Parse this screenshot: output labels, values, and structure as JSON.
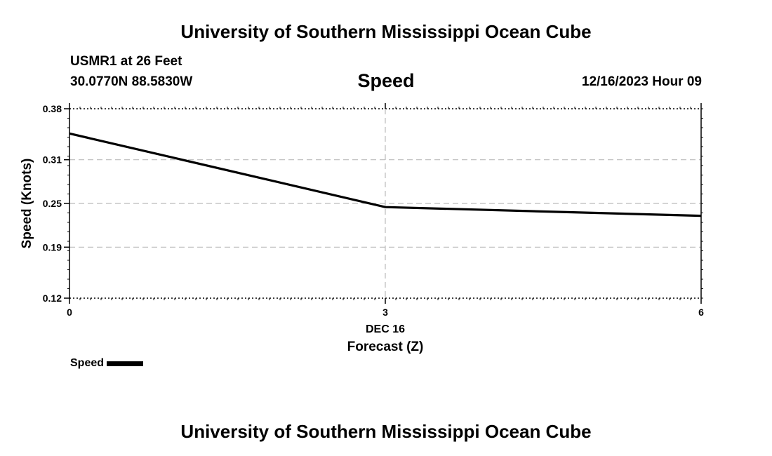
{
  "header": {
    "title": "University of Southern Mississippi Ocean Cube",
    "station": "USMR1 at 26 Feet",
    "coords": "30.0770N  88.5830W",
    "datetime": "12/16/2023 Hour 09"
  },
  "footer": {
    "title": "University of Southern Mississippi Ocean Cube"
  },
  "legend": {
    "label": "Speed"
  },
  "chart_data": {
    "type": "line",
    "title": "Speed",
    "xlabel": "Forecast (Z)",
    "ylabel": "Speed (Knots)",
    "x_date_label": "DEC 16",
    "xlim": [
      0,
      6
    ],
    "ylim": [
      0.12,
      0.38
    ],
    "x_ticks": [
      0,
      3,
      6
    ],
    "x_tick_labels": [
      "0",
      "3",
      "6"
    ],
    "y_ticks": [
      0.12,
      0.19,
      0.25,
      0.31,
      0.38
    ],
    "y_tick_labels": [
      "0.12",
      "0.19",
      "0.25",
      "0.31",
      "0.38"
    ],
    "grid": true,
    "series": [
      {
        "name": "Speed",
        "x": [
          0,
          3,
          6
        ],
        "values": [
          0.346,
          0.245,
          0.233
        ]
      }
    ]
  }
}
